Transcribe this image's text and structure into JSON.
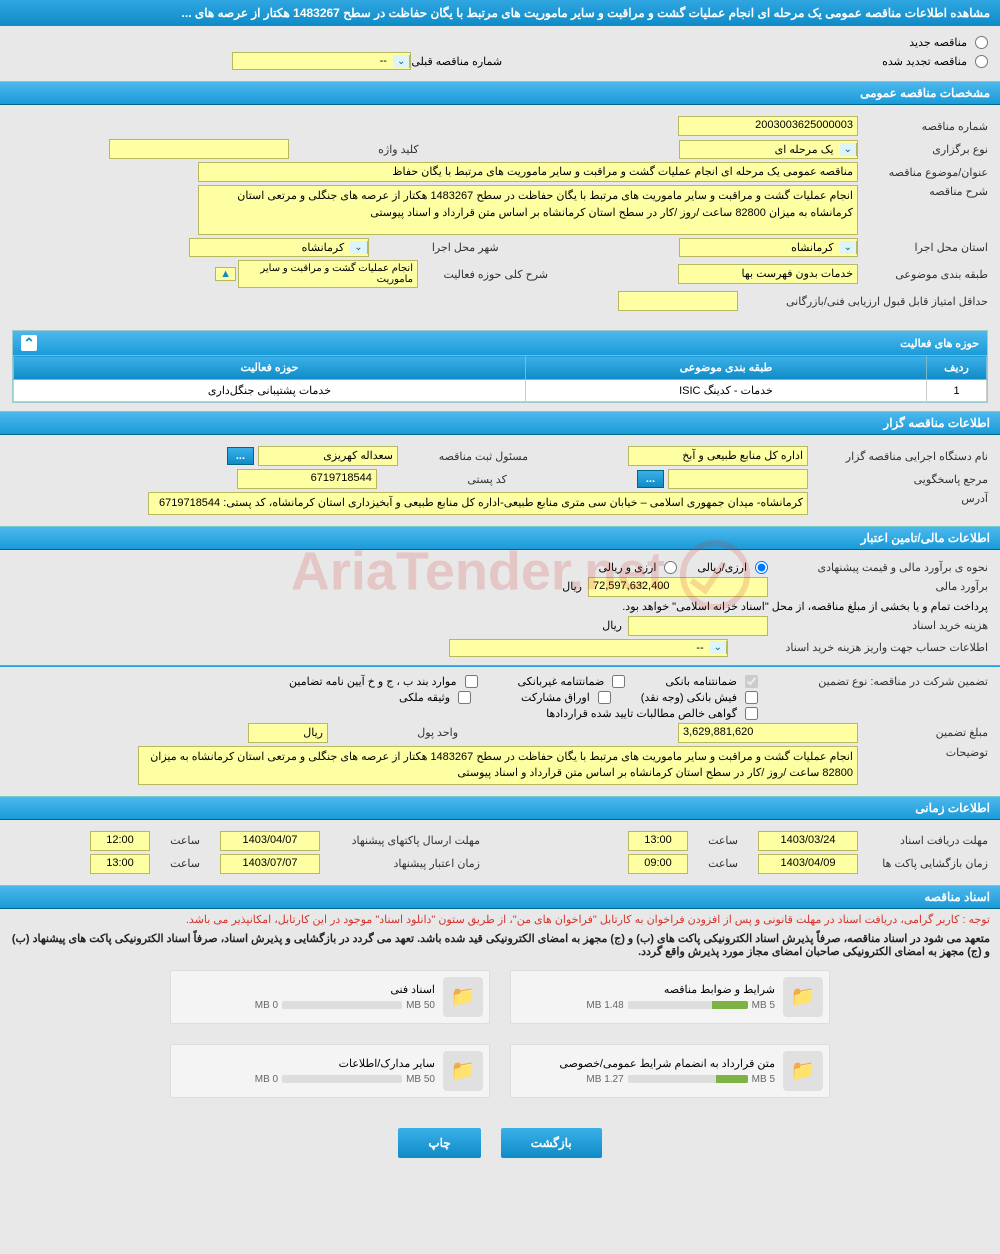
{
  "header": {
    "title": "مشاهده اطلاعات مناقصه عمومی یک مرحله ای انجام عملیات گشت و مراقبت و سایر ماموریت های مرتبط با یگان حفاظت در سطح 1483267 هکتار از عرصه های ..."
  },
  "radios": {
    "new": "مناقصه جدید",
    "renewed": "مناقصه تجدید شده",
    "prev_label": "شماره مناقصه قبلی",
    "prev_value": "--"
  },
  "sections": {
    "general": "مشخصات مناقصه عمومی",
    "activity_table": "حوزه های فعالیت",
    "organizer": "اطلاعات مناقصه گزار",
    "financial": "اطلاعات مالی/تامین اعتبار",
    "timing": "اطلاعات زمانی",
    "docs": "اسناد مناقصه"
  },
  "general": {
    "tender_no_lbl": "شماره مناقصه",
    "tender_no": "2003003625000003",
    "type_lbl": "نوع برگزاری",
    "type": "یک مرحله ای",
    "keyword_lbl": "کلید واژه",
    "keyword": "",
    "title_lbl": "عنوان/موضوع مناقصه",
    "title": "مناقصه عمومی یک مرحله ای انجام عملیات گشت و مراقبت و سایر ماموریت های مرتبط با یگان حفاظ",
    "desc_lbl": "شرح مناقصه",
    "desc": "انجام عملیات گشت و مراقبت و سایر ماموریت های مرتبط با یگان حفاظت در سطح 1483267 هکتار از عرصه های جنگلی و مرتعی استان کرمانشاه به میزان 82800 ساعت /روز /کار در سطح استان کرمانشاه بر اساس متن قرارداد و اسناد پیوستی",
    "province_lbl": "استان محل اجرا",
    "province": "کرمانشاه",
    "city_lbl": "شهر محل اجرا",
    "city": "کرمانشاه",
    "category_lbl": "طبقه بندی موضوعی",
    "category": "خدمات بدون فهرست بها",
    "activity_desc_lbl": "شرح کلی حوزه فعالیت",
    "activity_desc": "انجام عملیات گشت و مراقبت و سایر ماموریت",
    "min_score_lbl": "حداقل امتیاز قابل قبول ارزیابی فنی/بازرگانی",
    "min_score": ""
  },
  "activity_table": {
    "cols": {
      "row": "ردیف",
      "category": "طبقه بندی موضوعی",
      "activity": "حوزه فعالیت"
    },
    "rows": [
      {
        "idx": "1",
        "cat": "خدمات - کدینگ ISIC",
        "act": "خدمات پشتیبانی جنگل‌داری"
      }
    ]
  },
  "organizer": {
    "org_lbl": "نام دستگاه اجرایی مناقصه گزار",
    "org": "اداره کل منابع طبیعی و آبخ",
    "reg_lbl": "مسئول ثبت مناقصه",
    "reg": "سعداله کهریزی",
    "respond_lbl": "مرجع پاسخگویی",
    "respond": "",
    "postal_lbl": "کد پستی",
    "postal": "6719718544",
    "address_lbl": "آدرس",
    "address": "کرمانشاه- میدان جمهوری اسلامی – خیابان سی متری منابع طبیعی-اداره کل منابع طبیعی و آبخیزداری استان کرمانشاه، کد پستی: 6719718544"
  },
  "financial": {
    "method_lbl": "نحوه ی برآورد مالی و قیمت پیشنهادی",
    "opt_rial": "ارزی/ریالی",
    "opt_arz": "ارزی و ریالی",
    "estimate_lbl": "برآورد مالی",
    "estimate": "72,597,632,400",
    "currency": "ریال",
    "payment_note": "پرداخت تمام و یا بخشی از مبلغ مناقصه، از محل \"اسناد خزانه اسلامی\" خواهد بود.",
    "purchase_cost_lbl": "هزینه خرید اسناد",
    "purchase_cost": "",
    "account_lbl": "اطلاعات حساب جهت واریز هزینه خرید اسناد",
    "account": "--",
    "guarantee_type_lbl": "تضمین شرکت در مناقصه:    نوع تضمین",
    "chk_bank": "ضمانتنامه بانکی",
    "chk_nonbank": "ضمانتنامه غیربانکی",
    "chk_items": "موارد بند ب ، ج و خ آیین نامه تضامین",
    "chk_fish": "فیش بانکی (وجه نقد)",
    "chk_bonds": "اوراق مشارکت",
    "chk_property": "وثیقه ملکی",
    "chk_confirmed": "گواهی خالص مطالبات تایید شده قراردادها",
    "guarantee_amt_lbl": "مبلغ تضمین",
    "guarantee_amt": "3,629,881,620",
    "unit_lbl": "واحد پول",
    "unit": "ریال",
    "desc2_lbl": "توضیحات",
    "desc2": "انجام عملیات گشت و مراقبت و سایر ماموریت های مرتبط با یگان حفاظت در سطح 1483267 هکتار از عرصه های جنگلی و مرتعی استان کرمانشاه به میزان 82800 ساعت /روز /کار در سطح استان کرمانشاه بر اساس متن قرارداد و اسناد پیوستی"
  },
  "timing": {
    "receive_lbl": "مهلت دریافت اسناد",
    "receive_date": "1403/03/24",
    "receive_time": "13:00",
    "send_lbl": "مهلت ارسال پاکتهای پیشنهاد",
    "send_date": "1403/04/07",
    "send_time": "12:00",
    "open_lbl": "زمان بازگشایی پاکت ها",
    "open_date": "1403/04/09",
    "open_time": "09:00",
    "valid_lbl": "زمان اعتبار پیشنهاد",
    "valid_date": "1403/07/07",
    "valid_time": "13:00",
    "time_lbl": "ساعت"
  },
  "docs": {
    "notice1": "توجه : کاربر گرامی، دریافت اسناد در مهلت قانونی و پس از افزودن فراخوان به کارتابل \"فراخوان های من\"، از طریق ستون \"دانلود اسناد\" موجود در این کارتابل، امکانپذیر می باشد.",
    "notice2": "متعهد می شود در اسناد مناقصه، صرفاً پذیرش اسناد الکترونیکی پاکت های (ب) و (ج) مجهز به امضای الکترونیکی قید شده باشد. تعهد می گردد در بازگشایی و پذیرش اسناد، صرفاً اسناد الکترونیکی پاکت های پیشنهاد (ب) و (ج) مجهز به امضای الکترونیکی صاحبان امضای مجاز مورد پذیرش واقع گردد.",
    "items": [
      {
        "name": "شرایط و ضوابط مناقصه",
        "size": "1.48 MB",
        "max": "5 MB",
        "pct": 30
      },
      {
        "name": "اسناد فنی",
        "size": "0 MB",
        "max": "50 MB",
        "pct": 0
      },
      {
        "name": "متن قرارداد به انضمام شرایط عمومی/خصوصی",
        "size": "1.27 MB",
        "max": "5 MB",
        "pct": 26
      },
      {
        "name": "سایر مدارک/اطلاعات",
        "size": "0 MB",
        "max": "50 MB",
        "pct": 0
      }
    ]
  },
  "actions": {
    "back": "بازگشت",
    "print": "چاپ"
  },
  "watermark": "AriaTender.net"
}
